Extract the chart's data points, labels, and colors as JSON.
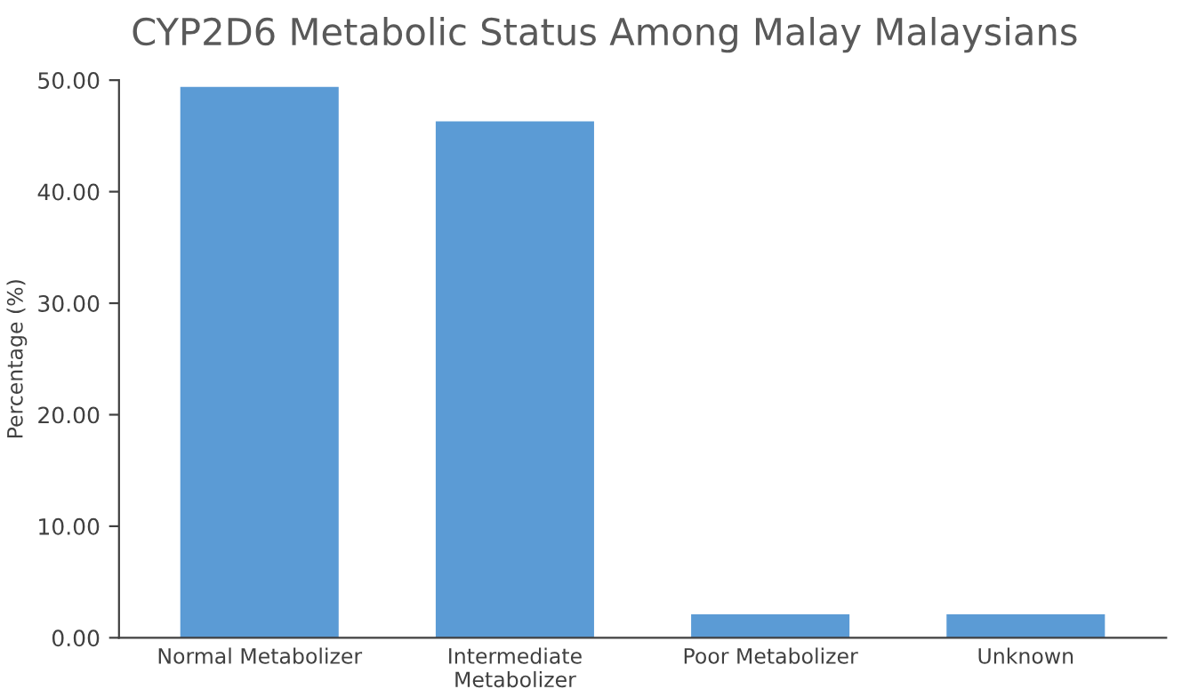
{
  "chart_data": {
    "type": "bar",
    "title": "CYP2D6 Metabolic Status Among Malay Malaysians",
    "ylabel": "Percentage (%)",
    "categories": [
      "Normal Metabolizer",
      "Intermediate Metabolizer",
      "Poor Metabolizer",
      "Unknown"
    ],
    "values": [
      49.4,
      46.3,
      2.1,
      2.1
    ],
    "color": "#5b9bd5",
    "ylim": [
      0,
      50
    ],
    "yticks": [
      {
        "value": 0,
        "label": "0.00"
      },
      {
        "value": 10,
        "label": "10.00"
      },
      {
        "value": 20,
        "label": "20.00"
      },
      {
        "value": 30,
        "label": "30.00"
      },
      {
        "value": 40,
        "label": "40.00"
      },
      {
        "value": 50,
        "label": "50.00"
      }
    ],
    "grid": false
  }
}
